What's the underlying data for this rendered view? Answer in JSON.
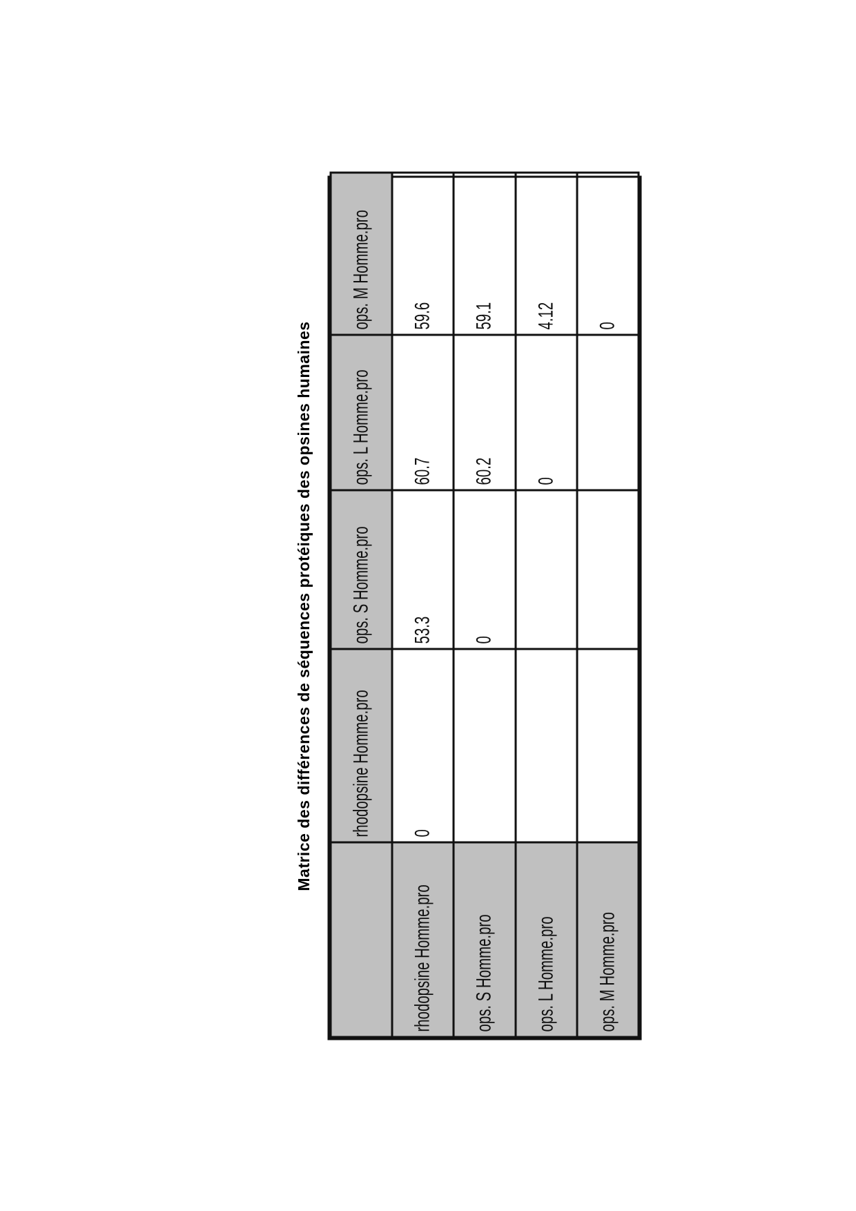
{
  "title": "Matrice des différences de séquences protéiques des opsines humaines",
  "colors": {
    "header_bg": "#c0c0c0",
    "border": "#111111"
  },
  "table": {
    "corner": "",
    "columns": [
      "rhodopsine Homme.pro",
      "ops. S Homme.pro",
      "ops. L Homme.pro",
      "ops. M Homme.pro"
    ],
    "rows": [
      {
        "label": "rhodopsine Homme.pro",
        "cells": [
          "0",
          "53.3",
          "60.7",
          "59.6"
        ]
      },
      {
        "label": "ops. S Homme.pro",
        "cells": [
          "",
          "0",
          "60.2",
          "59.1"
        ]
      },
      {
        "label": "ops. L Homme.pro",
        "cells": [
          "",
          "",
          "0",
          "4.12"
        ]
      },
      {
        "label": "ops. M Homme.pro",
        "cells": [
          "",
          "",
          "",
          "0"
        ]
      }
    ]
  }
}
